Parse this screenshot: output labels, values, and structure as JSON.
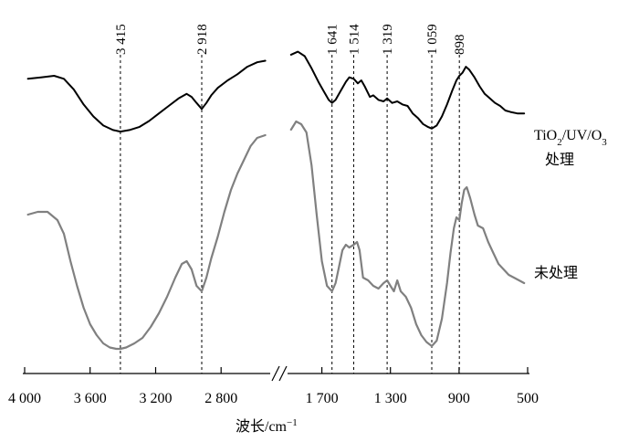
{
  "chart_data": {
    "type": "line",
    "title": "",
    "xlabel": "波长/cm",
    "xlabel_superscript": "−1",
    "ylabel": "",
    "x_reversed": true,
    "axis_break": true,
    "segments": [
      {
        "xmin": 2500,
        "xmax": 4000
      },
      {
        "xmin": 500,
        "xmax": 1900
      }
    ],
    "x_ticks": [
      {
        "value": 4000,
        "label": "4 000"
      },
      {
        "value": 3600,
        "label": "3 600"
      },
      {
        "value": 3200,
        "label": "3 200"
      },
      {
        "value": 2800,
        "label": "2 800"
      },
      {
        "value": 1700,
        "label": "1 700"
      },
      {
        "value": 1300,
        "label": "1 300"
      },
      {
        "value": 900,
        "label": "900"
      },
      {
        "value": 500,
        "label": "500"
      }
    ],
    "peak_markers": [
      {
        "value": 3415,
        "label": "3 415"
      },
      {
        "value": 2918,
        "label": "2 918"
      },
      {
        "value": 1641,
        "label": "1 641"
      },
      {
        "value": 1514,
        "label": "1 514"
      },
      {
        "value": 1319,
        "label": "1 319"
      },
      {
        "value": 1059,
        "label": "1 059"
      },
      {
        "value": 898,
        "label": "898"
      }
    ],
    "series": [
      {
        "name": "TiO₂/UV/O₃ 处理",
        "label_main": "TiO",
        "label_sub1": "2",
        "label_mid": "/UV/O",
        "label_sub2": "3",
        "label_line2": "处理",
        "color": "#000000",
        "points": [
          [
            3980,
            0.78
          ],
          [
            3900,
            0.79
          ],
          [
            3820,
            0.8
          ],
          [
            3760,
            0.78
          ],
          [
            3700,
            0.71
          ],
          [
            3640,
            0.61
          ],
          [
            3580,
            0.53
          ],
          [
            3520,
            0.47
          ],
          [
            3460,
            0.44
          ],
          [
            3415,
            0.43
          ],
          [
            3360,
            0.44
          ],
          [
            3300,
            0.46
          ],
          [
            3240,
            0.5
          ],
          [
            3180,
            0.55
          ],
          [
            3120,
            0.6
          ],
          [
            3060,
            0.65
          ],
          [
            3010,
            0.68
          ],
          [
            2980,
            0.66
          ],
          [
            2950,
            0.62
          ],
          [
            2918,
            0.58
          ],
          [
            2890,
            0.62
          ],
          [
            2860,
            0.67
          ],
          [
            2820,
            0.72
          ],
          [
            2760,
            0.77
          ],
          [
            2700,
            0.81
          ],
          [
            2640,
            0.86
          ],
          [
            2580,
            0.89
          ],
          [
            2530,
            0.9
          ],
          [
            1880,
            0.94
          ],
          [
            1840,
            0.96
          ],
          [
            1800,
            0.93
          ],
          [
            1760,
            0.85
          ],
          [
            1720,
            0.76
          ],
          [
            1690,
            0.7
          ],
          [
            1660,
            0.64
          ],
          [
            1641,
            0.62
          ],
          [
            1620,
            0.64
          ],
          [
            1590,
            0.7
          ],
          [
            1560,
            0.76
          ],
          [
            1540,
            0.79
          ],
          [
            1514,
            0.78
          ],
          [
            1490,
            0.75
          ],
          [
            1470,
            0.77
          ],
          [
            1450,
            0.73
          ],
          [
            1420,
            0.66
          ],
          [
            1400,
            0.67
          ],
          [
            1370,
            0.64
          ],
          [
            1340,
            0.63
          ],
          [
            1319,
            0.65
          ],
          [
            1290,
            0.62
          ],
          [
            1260,
            0.63
          ],
          [
            1230,
            0.61
          ],
          [
            1200,
            0.6
          ],
          [
            1170,
            0.55
          ],
          [
            1140,
            0.52
          ],
          [
            1110,
            0.48
          ],
          [
            1080,
            0.46
          ],
          [
            1059,
            0.45
          ],
          [
            1030,
            0.47
          ],
          [
            1000,
            0.53
          ],
          [
            970,
            0.61
          ],
          [
            940,
            0.7
          ],
          [
            915,
            0.77
          ],
          [
            898,
            0.8
          ],
          [
            880,
            0.82
          ],
          [
            860,
            0.86
          ],
          [
            840,
            0.84
          ],
          [
            810,
            0.79
          ],
          [
            780,
            0.73
          ],
          [
            750,
            0.68
          ],
          [
            720,
            0.65
          ],
          [
            690,
            0.62
          ],
          [
            660,
            0.6
          ],
          [
            630,
            0.57
          ],
          [
            600,
            0.56
          ],
          [
            560,
            0.55
          ],
          [
            520,
            0.55
          ]
        ]
      },
      {
        "name": "未处理",
        "label_main": "未处理",
        "color": "#808080",
        "points": [
          [
            3980,
            0.5
          ],
          [
            3920,
            0.51
          ],
          [
            3860,
            0.51
          ],
          [
            3800,
            0.48
          ],
          [
            3760,
            0.43
          ],
          [
            3720,
            0.33
          ],
          [
            3680,
            0.24
          ],
          [
            3640,
            0.16
          ],
          [
            3600,
            0.1
          ],
          [
            3560,
            0.06
          ],
          [
            3520,
            0.03
          ],
          [
            3480,
            0.015
          ],
          [
            3440,
            0.01
          ],
          [
            3415,
            0.01
          ],
          [
            3380,
            0.015
          ],
          [
            3330,
            0.03
          ],
          [
            3280,
            0.05
          ],
          [
            3230,
            0.09
          ],
          [
            3180,
            0.14
          ],
          [
            3130,
            0.2
          ],
          [
            3080,
            0.27
          ],
          [
            3040,
            0.32
          ],
          [
            3010,
            0.33
          ],
          [
            2980,
            0.3
          ],
          [
            2950,
            0.24
          ],
          [
            2918,
            0.22
          ],
          [
            2890,
            0.27
          ],
          [
            2860,
            0.34
          ],
          [
            2820,
            0.42
          ],
          [
            2780,
            0.51
          ],
          [
            2740,
            0.59
          ],
          [
            2700,
            0.65
          ],
          [
            2660,
            0.7
          ],
          [
            2620,
            0.75
          ],
          [
            2580,
            0.78
          ],
          [
            2530,
            0.79
          ],
          [
            1880,
            0.81
          ],
          [
            1850,
            0.84
          ],
          [
            1820,
            0.83
          ],
          [
            1790,
            0.8
          ],
          [
            1760,
            0.68
          ],
          [
            1730,
            0.5
          ],
          [
            1700,
            0.33
          ],
          [
            1670,
            0.24
          ],
          [
            1641,
            0.22
          ],
          [
            1620,
            0.25
          ],
          [
            1600,
            0.31
          ],
          [
            1580,
            0.37
          ],
          [
            1560,
            0.39
          ],
          [
            1540,
            0.38
          ],
          [
            1514,
            0.39
          ],
          [
            1495,
            0.4
          ],
          [
            1480,
            0.37
          ],
          [
            1460,
            0.27
          ],
          [
            1430,
            0.26
          ],
          [
            1400,
            0.24
          ],
          [
            1370,
            0.23
          ],
          [
            1340,
            0.25
          ],
          [
            1319,
            0.26
          ],
          [
            1300,
            0.24
          ],
          [
            1280,
            0.22
          ],
          [
            1260,
            0.26
          ],
          [
            1240,
            0.22
          ],
          [
            1210,
            0.2
          ],
          [
            1180,
            0.16
          ],
          [
            1150,
            0.1
          ],
          [
            1120,
            0.06
          ],
          [
            1090,
            0.035
          ],
          [
            1059,
            0.02
          ],
          [
            1030,
            0.04
          ],
          [
            1000,
            0.12
          ],
          [
            970,
            0.25
          ],
          [
            950,
            0.36
          ],
          [
            930,
            0.45
          ],
          [
            915,
            0.49
          ],
          [
            898,
            0.48
          ],
          [
            885,
            0.54
          ],
          [
            870,
            0.59
          ],
          [
            855,
            0.6
          ],
          [
            835,
            0.56
          ],
          [
            810,
            0.5
          ],
          [
            790,
            0.46
          ],
          [
            760,
            0.45
          ],
          [
            730,
            0.4
          ],
          [
            700,
            0.36
          ],
          [
            670,
            0.32
          ],
          [
            640,
            0.3
          ],
          [
            610,
            0.28
          ],
          [
            580,
            0.27
          ],
          [
            550,
            0.26
          ],
          [
            520,
            0.25
          ]
        ]
      }
    ]
  }
}
